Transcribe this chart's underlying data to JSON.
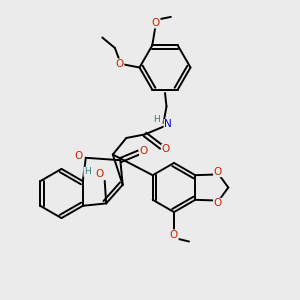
{
  "background_color": "#ebebeb",
  "atom_colors": {
    "O": "#cc2200",
    "N": "#0000cc",
    "H": "#2d8080"
  },
  "bond_color": "#000000",
  "bond_width": 1.4
}
